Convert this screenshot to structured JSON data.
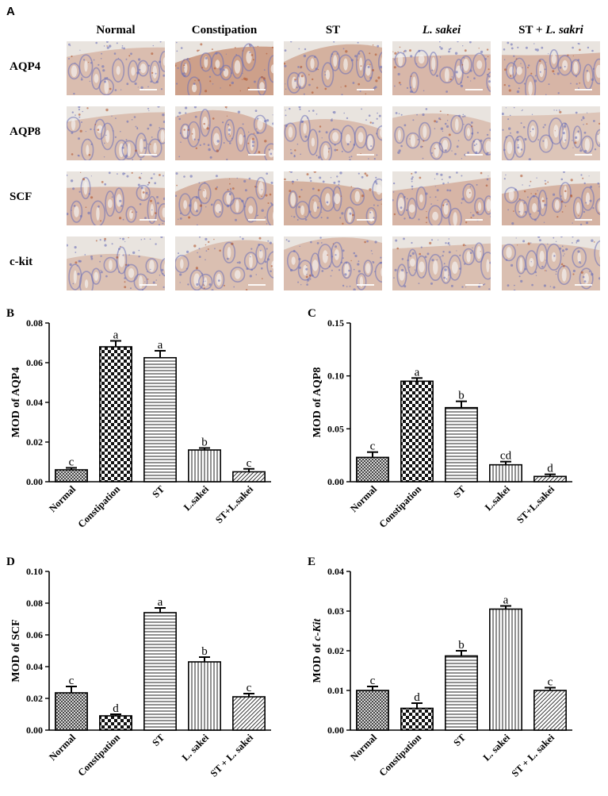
{
  "figure_label_a": "A",
  "micrograph_grid": {
    "columns": [
      {
        "label": "Normal",
        "italic": false
      },
      {
        "label": "Constipation",
        "italic": false
      },
      {
        "label": "ST",
        "italic": false
      },
      {
        "label": "L. sakei",
        "italic": true
      },
      {
        "label": "ST + L. sakri",
        "italic": false,
        "italic_part": "L. sakri"
      }
    ],
    "rows": [
      "AQP4",
      "AQP8",
      "SCF",
      "c-kit"
    ],
    "stain_colors": {
      "hematoxylin": "#6b6fb8",
      "dab": "#b0552f",
      "background": "#e9e4df"
    }
  },
  "chart_data": [
    {
      "panel": "B",
      "type": "bar",
      "ylabel": "MOD of AQP4",
      "categories": [
        "Normal",
        "Constipation",
        "ST",
        "L.sakei",
        "ST+L.sakei"
      ],
      "values": [
        0.006,
        0.068,
        0.0625,
        0.016,
        0.005
      ],
      "errors": [
        0.001,
        0.003,
        0.0035,
        0.001,
        0.0015
      ],
      "letters": [
        "c",
        "a",
        "a",
        "b",
        "c"
      ],
      "ylim": [
        0,
        0.08
      ],
      "yticks": [
        "0.00",
        "0.02",
        "0.04",
        "0.06",
        "0.08"
      ],
      "patterns": [
        "cross",
        "checker",
        "hlines",
        "vlines",
        "diag"
      ]
    },
    {
      "panel": "C",
      "type": "bar",
      "ylabel": "MOD of AQP8",
      "categories": [
        "Normal",
        "Constipation",
        "ST",
        "L.sakei",
        "ST+L.sakei"
      ],
      "values": [
        0.023,
        0.095,
        0.07,
        0.016,
        0.005
      ],
      "errors": [
        0.005,
        0.003,
        0.006,
        0.003,
        0.002
      ],
      "letters": [
        "c",
        "a",
        "b",
        "cd",
        "d"
      ],
      "ylim": [
        0,
        0.15
      ],
      "yticks": [
        "0.00",
        "0.05",
        "0.10",
        "0.15"
      ],
      "patterns": [
        "cross",
        "checker",
        "hlines",
        "vlines",
        "diag"
      ]
    },
    {
      "panel": "D",
      "type": "bar",
      "ylabel": "MOD of SCF",
      "categories": [
        "Normal",
        "Constipation",
        "ST",
        "L. sakei",
        "ST + L. sakei"
      ],
      "values": [
        0.0235,
        0.009,
        0.074,
        0.043,
        0.021
      ],
      "errors": [
        0.004,
        0.001,
        0.003,
        0.003,
        0.002
      ],
      "letters": [
        "c",
        "d",
        "a",
        "b",
        "c"
      ],
      "ylim": [
        0,
        0.1
      ],
      "yticks": [
        "0.00",
        "0.02",
        "0.04",
        "0.06",
        "0.08",
        "0.10"
      ],
      "patterns": [
        "cross",
        "checker",
        "hlines",
        "vlines",
        "diag"
      ]
    },
    {
      "panel": "E",
      "type": "bar",
      "ylabel": "MOD of c-Kit",
      "ylabel_italic_part": "c-Kit",
      "categories": [
        "Normal",
        "Constipation",
        "ST",
        "L. sakei",
        "ST + L. sakei"
      ],
      "values": [
        0.01,
        0.0055,
        0.0187,
        0.0305,
        0.01
      ],
      "errors": [
        0.001,
        0.0013,
        0.0013,
        0.0008,
        0.0007
      ],
      "letters": [
        "c",
        "d",
        "b",
        "a",
        "c"
      ],
      "ylim": [
        0,
        0.04
      ],
      "yticks": [
        "0.00",
        "0.01",
        "0.02",
        "0.03",
        "0.04"
      ],
      "patterns": [
        "cross",
        "checker",
        "hlines",
        "vlines",
        "diag"
      ]
    }
  ]
}
